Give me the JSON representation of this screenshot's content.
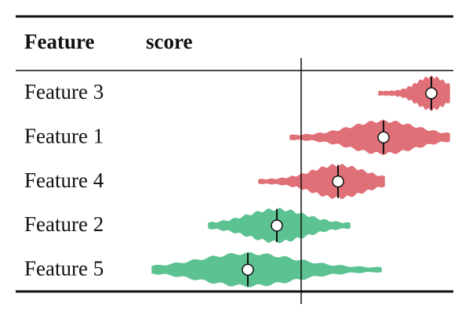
{
  "chart_data": {
    "type": "violin",
    "columns": [
      "Feature",
      "score"
    ],
    "rows": [
      {
        "label": "Feature 3",
        "mean": 1.66,
        "min": 0.99,
        "max": 1.89,
        "color": "#e07078"
      },
      {
        "label": "Feature 1",
        "mean": 1.05,
        "min": -0.14,
        "max": 1.89,
        "color": "#e07078"
      },
      {
        "label": "Feature 4",
        "mean": 0.47,
        "min": -0.54,
        "max": 1.06,
        "color": "#e07078"
      },
      {
        "label": "Feature 2",
        "mean": -0.31,
        "min": -1.18,
        "max": 0.62,
        "color": "#5cc291"
      },
      {
        "label": "Feature 5",
        "mean": -0.68,
        "min": -1.9,
        "max": 1.02,
        "color": "#5cc291"
      }
    ],
    "xlim": [
      -1.94,
      1.91
    ],
    "reference_line": 0
  }
}
